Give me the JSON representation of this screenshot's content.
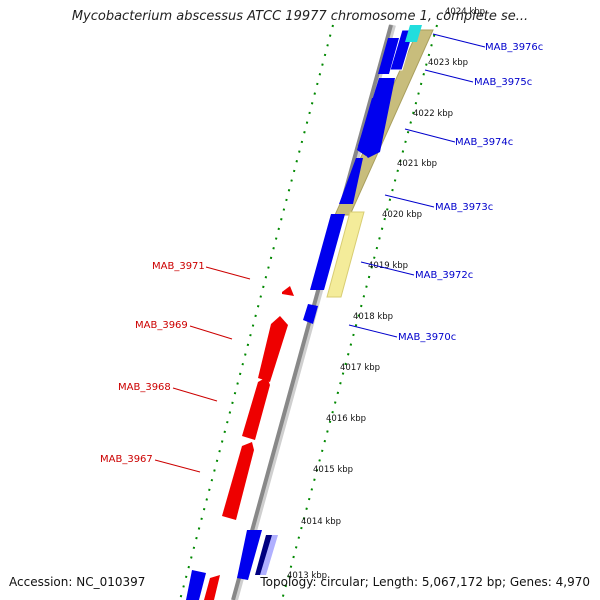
{
  "title": "Mycobacterium abscessus ATCC 19977 chromosome 1, complete se...",
  "footer": {
    "accession": "Accession: NC_010397",
    "summary": "Topology: circular; Length: 5,067,172 bp; Genes: 4,970"
  },
  "colors": {
    "forward_gene": "#0000ee",
    "reverse_gene": "#ee0000",
    "backbone": "#888888",
    "khaki_band": "#c8bd7c",
    "light_band": "#f4ec9a",
    "cyan_gene": "#22dddd",
    "tick_green": "#008800"
  },
  "scale_ticks": [
    "4024 kbp",
    "4023 kbp",
    "4022 kbp",
    "4021 kbp",
    "4020 kbp",
    "4019 kbp",
    "4018 kbp",
    "4017 kbp",
    "4016 kbp",
    "4015 kbp",
    "4014 kbp",
    "4013 kbp"
  ],
  "forward_gene_labels": [
    "MAB_3976c",
    "MAB_3975c",
    "MAB_3974c",
    "MAB_3973c",
    "MAB_3972c",
    "MAB_3970c"
  ],
  "reverse_gene_labels": [
    "MAB_3971",
    "MAB_3969",
    "MAB_3968",
    "MAB_3967"
  ]
}
